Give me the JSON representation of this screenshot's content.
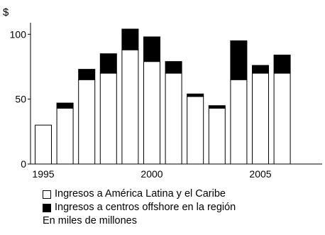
{
  "chart_data": {
    "type": "bar",
    "stacked": true,
    "categories": [
      1995,
      1996,
      1997,
      1998,
      1999,
      2000,
      2001,
      2002,
      2003,
      2004,
      2005,
      2006
    ],
    "series": [
      {
        "name": "Ingresos a América Latina y el Caribe",
        "color": "#ffffff",
        "values": [
          30,
          43,
          65,
          70,
          88,
          79,
          70,
          52,
          43,
          65,
          70,
          70
        ]
      },
      {
        "name": "Ingresos a centros offshore en la región",
        "color": "#000000",
        "values": [
          0,
          4,
          8,
          15,
          16,
          19,
          9,
          2,
          2,
          30,
          6,
          14
        ]
      }
    ],
    "ylabel": "$",
    "ylim": [
      0,
      110
    ],
    "yticks": [
      0,
      50,
      100
    ],
    "xtick_labels": [
      "1995",
      "2000",
      "2005"
    ],
    "note": "En miles de millones",
    "grid": false
  }
}
